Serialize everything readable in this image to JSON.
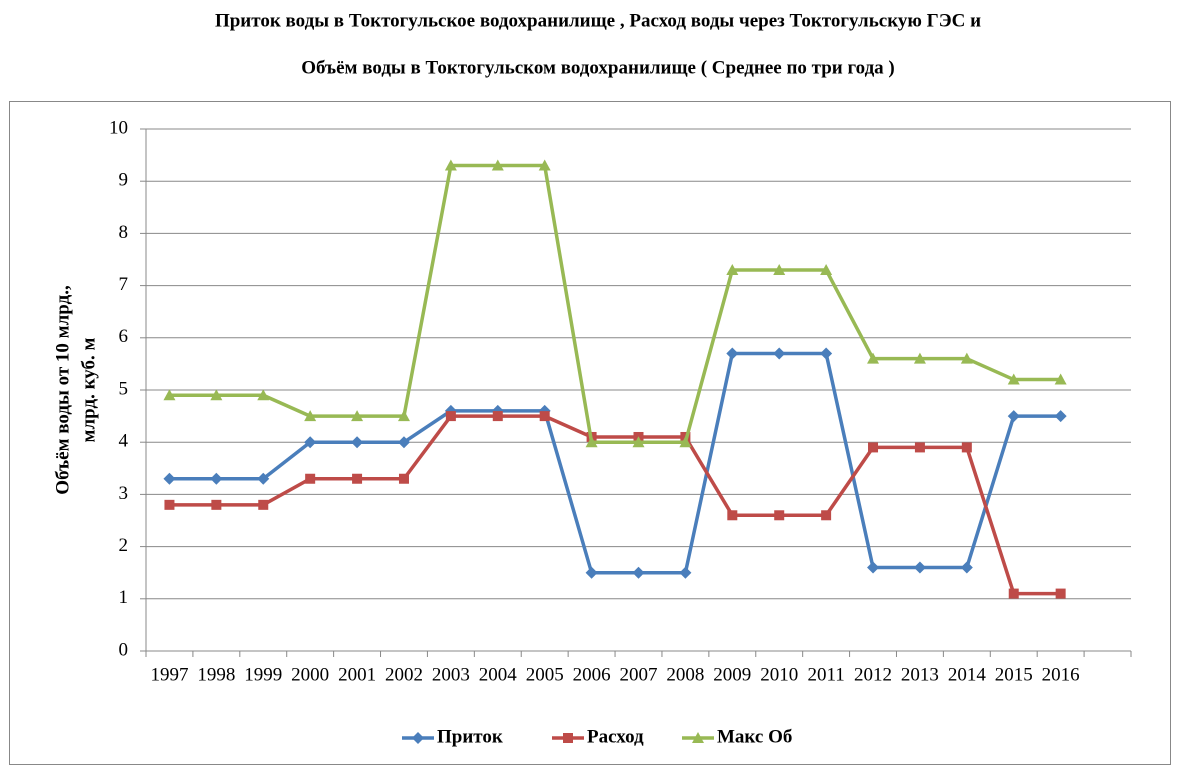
{
  "chart_data": {
    "type": "line",
    "title": [
      "Приток воды в Токтогульское водохранилище , Расход воды через Токтогульскую  ГЭС  и",
      "Объём воды в Токтогульском водохранилище ( Среднее по три года )"
    ],
    "y_label": [
      "Объём воды от 10 млрд.,",
      "млрд. куб. м"
    ],
    "categories": [
      "1997",
      "1998",
      "1999",
      "2000",
      "2001",
      "2002",
      "2003",
      "2004",
      "2005",
      "2006",
      "2007",
      "2008",
      "2009",
      "2010",
      "2011",
      "2012",
      "2013",
      "2014",
      "2015",
      "2016",
      null
    ],
    "series": [
      {
        "name": "Приток",
        "color": "#4a7ebb",
        "marker": "diamond",
        "values": [
          3.3,
          3.3,
          3.3,
          4.0,
          4.0,
          4.0,
          4.6,
          4.6,
          4.6,
          1.5,
          1.5,
          1.5,
          5.7,
          5.7,
          5.7,
          1.6,
          1.6,
          1.6,
          4.5,
          4.5,
          null
        ]
      },
      {
        "name": "Расход",
        "color": "#be4b48",
        "marker": "square",
        "values": [
          2.8,
          2.8,
          2.8,
          3.3,
          3.3,
          3.3,
          4.5,
          4.5,
          4.5,
          4.1,
          4.1,
          4.1,
          2.6,
          2.6,
          2.6,
          3.9,
          3.9,
          3.9,
          1.1,
          1.1,
          null
        ]
      },
      {
        "name": "Макс Об",
        "color": "#98b954",
        "marker": "triangle",
        "values": [
          4.9,
          4.9,
          4.9,
          4.5,
          4.5,
          4.5,
          9.3,
          9.3,
          9.3,
          4.0,
          4.0,
          4.0,
          7.3,
          7.3,
          7.3,
          5.6,
          5.6,
          5.6,
          5.2,
          5.2,
          null
        ]
      }
    ],
    "ylim": [
      0,
      10
    ],
    "yticks": [
      0,
      1,
      2,
      3,
      4,
      5,
      6,
      7,
      8,
      9,
      10
    ],
    "grid": true,
    "legend": "bottom"
  }
}
